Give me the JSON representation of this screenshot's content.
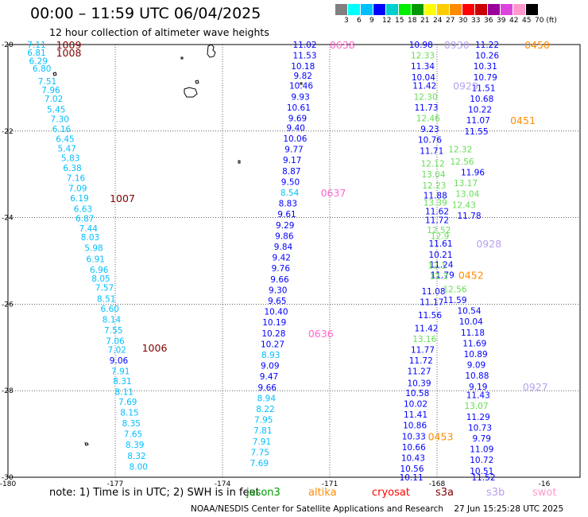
{
  "header": {
    "title": "00:00 – 11:59 UTC 06/04/2025",
    "subtitle": "12 hour collection of altimeter wave heights"
  },
  "legend": {
    "colors": [
      "#808080",
      "#00ffff",
      "#00bfff",
      "#0000ff",
      "#00cfcf",
      "#00ee00",
      "#009900",
      "#ffff00",
      "#ffcc00",
      "#ff8c00",
      "#ff0000",
      "#cc0000",
      "#990099",
      "#dd44dd",
      "#ff99cc",
      "#000000"
    ],
    "labels": [
      "3",
      "6",
      "9",
      "12",
      "15",
      "18",
      "21",
      "24",
      "27",
      "30",
      "33",
      "36",
      "39",
      "42",
      "45",
      "70 (ft)"
    ]
  },
  "axes": {
    "x_ticks": [
      "-180",
      "-177",
      "-174",
      "-171",
      "-168",
      "-16"
    ],
    "y_ticks": [
      "-20",
      "-22",
      "-24",
      "-26",
      "-28",
      "-30"
    ]
  },
  "chart_data": {
    "type": "scatter",
    "xlim": [
      -180,
      -164
    ],
    "ylim": [
      -30,
      -20
    ],
    "grid": true,
    "series": [
      {
        "color": "#00bfff",
        "points": [
          [
            -179.2,
            -20.0,
            "7.11"
          ],
          [
            -179.2,
            -20.18,
            "6.81"
          ],
          [
            -179.15,
            -20.38,
            "6.29"
          ],
          [
            -179.05,
            -20.55,
            "6.80"
          ],
          [
            -178.9,
            -20.85,
            "7.51"
          ],
          [
            -178.8,
            -21.05,
            "7.96"
          ],
          [
            -178.72,
            -21.25,
            "7.02"
          ],
          [
            -178.65,
            -21.5,
            "5.45"
          ],
          [
            -178.55,
            -21.72,
            "7.30"
          ],
          [
            -178.5,
            -21.95,
            "6.16"
          ],
          [
            -178.4,
            -22.18,
            "6.45"
          ],
          [
            -178.35,
            -22.4,
            "5.47"
          ],
          [
            -178.25,
            -22.62,
            "5.83"
          ],
          [
            -178.2,
            -22.85,
            "6.38"
          ],
          [
            -178.1,
            -23.08,
            "7.16"
          ],
          [
            -178.05,
            -23.32,
            "7.09"
          ],
          [
            -178.0,
            -23.55,
            "6.19"
          ],
          [
            -177.9,
            -23.8,
            "6.63"
          ],
          [
            -177.85,
            -24.02,
            "6.87"
          ],
          [
            -177.75,
            -24.25,
            "7.44"
          ],
          [
            -177.7,
            -24.45,
            "8.03"
          ],
          [
            -177.6,
            -24.7,
            "5.98"
          ],
          [
            -177.55,
            -24.95,
            "6.91"
          ],
          [
            -177.45,
            -25.2,
            "6.96"
          ],
          [
            -177.4,
            -25.4,
            "8.05"
          ],
          [
            -177.3,
            -25.62,
            "7.57"
          ],
          [
            -177.25,
            -25.87,
            "8.51"
          ],
          [
            -177.15,
            -26.1,
            "6.60"
          ],
          [
            -177.1,
            -26.35,
            "8.14"
          ],
          [
            -177.05,
            -26.6,
            "7.55"
          ],
          [
            -177.0,
            -26.85,
            "7.06"
          ],
          [
            -176.95,
            -27.05,
            "7.02"
          ]
        ]
      },
      {
        "color": "#0000ff",
        "points": [
          [
            -176.9,
            -27.3,
            "9.06"
          ]
        ]
      },
      {
        "color": "#00bfff",
        "points": [
          [
            -176.85,
            -27.55,
            "7.91"
          ],
          [
            -176.8,
            -27.78,
            "8.31"
          ],
          [
            -176.75,
            -28.02,
            "8.11"
          ],
          [
            -176.65,
            -28.25,
            "7.69"
          ],
          [
            -176.6,
            -28.5,
            "8.15"
          ],
          [
            -176.55,
            -28.75,
            "8.35"
          ],
          [
            -176.5,
            -29.0,
            "7.65"
          ],
          [
            -176.45,
            -29.25,
            "8.39"
          ],
          [
            -176.4,
            -29.5,
            "8.32"
          ],
          [
            -176.35,
            -29.75,
            "8.00"
          ]
        ]
      },
      {
        "color": "#0000ff",
        "points": [
          [
            -171.7,
            -20.0,
            "11.02"
          ],
          [
            -171.7,
            -20.25,
            "11.53"
          ],
          [
            -171.75,
            -20.5,
            "10.18"
          ],
          [
            -171.75,
            -20.72,
            "9.82"
          ],
          [
            -171.8,
            -20.95,
            "10.46"
          ],
          [
            -171.82,
            -21.2,
            "9.93"
          ],
          [
            -171.87,
            -21.45,
            "10.61"
          ],
          [
            -171.9,
            -21.7,
            "9.69"
          ],
          [
            -171.95,
            -21.92,
            "9.40"
          ],
          [
            -171.97,
            -22.17,
            "10.06"
          ],
          [
            -172.0,
            -22.42,
            "9.77"
          ],
          [
            -172.05,
            -22.67,
            "9.17"
          ],
          [
            -172.07,
            -22.92,
            "8.87"
          ],
          [
            -172.1,
            -23.17,
            "9.50"
          ]
        ]
      },
      {
        "color": "#00bfff",
        "points": [
          [
            -172.12,
            -23.42,
            "8.54"
          ]
        ]
      },
      {
        "color": "#0000ff",
        "points": [
          [
            -172.17,
            -23.67,
            "8.83"
          ],
          [
            -172.2,
            -23.92,
            "9.61"
          ],
          [
            -172.25,
            -24.17,
            "9.29"
          ],
          [
            -172.27,
            -24.42,
            "9.86"
          ],
          [
            -172.3,
            -24.67,
            "9.84"
          ],
          [
            -172.35,
            -24.92,
            "9.42"
          ],
          [
            -172.37,
            -25.17,
            "9.76"
          ],
          [
            -172.4,
            -25.42,
            "9.66"
          ],
          [
            -172.45,
            -25.67,
            "9.30"
          ],
          [
            -172.47,
            -25.92,
            "9.65"
          ],
          [
            -172.5,
            -26.17,
            "10.40"
          ],
          [
            -172.55,
            -26.42,
            "10.19"
          ],
          [
            -172.57,
            -26.67,
            "10.28"
          ],
          [
            -172.6,
            -26.92,
            "10.27"
          ]
        ]
      },
      {
        "color": "#00bfff",
        "points": [
          [
            -172.65,
            -27.17,
            "8.93"
          ]
        ]
      },
      {
        "color": "#0000ff",
        "points": [
          [
            -172.67,
            -27.42,
            "9.09"
          ],
          [
            -172.7,
            -27.67,
            "9.47"
          ],
          [
            -172.75,
            -27.92,
            "9.66"
          ]
        ]
      },
      {
        "color": "#00bfff",
        "points": [
          [
            -172.77,
            -28.17,
            "8.94"
          ],
          [
            -172.8,
            -28.42,
            "8.22"
          ],
          [
            -172.85,
            -28.67,
            "7.95"
          ],
          [
            -172.87,
            -28.92,
            "7.81"
          ],
          [
            -172.9,
            -29.17,
            "7.91"
          ],
          [
            -172.95,
            -29.42,
            "7.75"
          ],
          [
            -172.97,
            -29.67,
            "7.69"
          ]
        ]
      },
      {
        "color": "#0000ff",
        "points": [
          [
            -168.45,
            -20.0,
            "10.98"
          ],
          [
            -168.4,
            -20.5,
            "11.34"
          ],
          [
            -168.38,
            -20.75,
            "10.04"
          ],
          [
            -168.35,
            -20.95,
            "11.42"
          ],
          [
            -168.3,
            -21.45,
            "11.73"
          ],
          [
            -168.2,
            -21.95,
            "9.23"
          ],
          [
            -168.2,
            -22.2,
            "10.76"
          ],
          [
            -168.15,
            -22.45,
            "11.71"
          ],
          [
            -168.05,
            -23.48,
            "11.88"
          ],
          [
            -168.0,
            -23.85,
            "11.62"
          ],
          [
            -168.0,
            -24.05,
            "11.72"
          ],
          [
            -167.9,
            -24.6,
            "11.61"
          ],
          [
            -167.9,
            -24.85,
            "10.21"
          ],
          [
            -167.88,
            -25.08,
            "11.24"
          ],
          [
            -167.85,
            -25.32,
            "11.79"
          ],
          [
            -168.1,
            -25.7,
            "11.08"
          ],
          [
            -168.15,
            -25.95,
            "11.17"
          ],
          [
            -168.2,
            -26.25,
            "11.56"
          ],
          [
            -168.3,
            -26.55,
            "11.42"
          ],
          [
            -168.4,
            -27.05,
            "11.77"
          ],
          [
            -168.45,
            -27.3,
            "11.72"
          ],
          [
            -168.5,
            -27.55,
            "11.27"
          ],
          [
            -168.5,
            -27.82,
            "10.39"
          ],
          [
            -168.55,
            -28.05,
            "10.58"
          ],
          [
            -168.6,
            -28.3,
            "10.02"
          ],
          [
            -168.6,
            -28.55,
            "11.41"
          ],
          [
            -168.62,
            -28.8,
            "10.86"
          ],
          [
            -168.65,
            -29.05,
            "10.33"
          ],
          [
            -168.65,
            -29.3,
            "10.66"
          ],
          [
            -168.67,
            -29.55,
            "10.43"
          ],
          [
            -168.7,
            -29.8,
            "10.56"
          ],
          [
            -168.72,
            -30.0,
            "10.11"
          ]
        ]
      },
      {
        "color": "#66dd55",
        "points": [
          [
            -168.4,
            -20.25,
            "12.33"
          ],
          [
            -168.32,
            -21.2,
            "12.30"
          ],
          [
            -168.25,
            -21.7,
            "12.46"
          ],
          [
            -168.12,
            -22.75,
            "12.12"
          ],
          [
            -168.1,
            -23.0,
            "13.04"
          ],
          [
            -168.08,
            -23.25,
            "12.23"
          ],
          [
            -168.05,
            -23.65,
            "13.39"
          ],
          [
            -167.95,
            -24.28,
            "12.52"
          ],
          [
            -167.92,
            -24.42,
            "12.9"
          ],
          [
            -168.0,
            -25.1,
            "12.1"
          ],
          [
            -167.95,
            -25.35,
            "12.3"
          ],
          [
            -167.5,
            -25.65,
            "12.56"
          ],
          [
            -168.35,
            -26.8,
            "13.16"
          ],
          [
            -166.9,
            -28.35,
            "13.07"
          ],
          [
            -167.35,
            -22.42,
            "12.32"
          ],
          [
            -167.3,
            -22.7,
            "12.56"
          ],
          [
            -167.2,
            -23.2,
            "13.17"
          ],
          [
            -167.15,
            -23.45,
            "13.04"
          ],
          [
            -167.25,
            -23.7,
            "12.43"
          ]
        ]
      },
      {
        "color": "#0000ff",
        "points": [
          [
            -166.6,
            -20.0,
            "11.22"
          ],
          [
            -166.6,
            -20.25,
            "10.26"
          ],
          [
            -166.65,
            -20.5,
            "10.31"
          ],
          [
            -166.65,
            -20.75,
            "10.79"
          ],
          [
            -166.7,
            -21.0,
            "11.51"
          ],
          [
            -166.75,
            -21.25,
            "10.68"
          ],
          [
            -166.8,
            -21.5,
            "10.22"
          ],
          [
            -166.85,
            -21.75,
            "11.07"
          ],
          [
            -166.9,
            -22.0,
            "11.55"
          ],
          [
            -167.0,
            -22.95,
            "11.96"
          ],
          [
            -167.1,
            -23.95,
            "11.78"
          ],
          [
            -167.5,
            -25.9,
            "11.59"
          ],
          [
            -167.1,
            -26.15,
            "10.54"
          ],
          [
            -167.05,
            -26.4,
            "10.04"
          ],
          [
            -167.0,
            -26.65,
            "11.18"
          ],
          [
            -166.95,
            -26.9,
            "11.69"
          ],
          [
            -166.92,
            -27.15,
            "10.89"
          ],
          [
            -166.9,
            -27.4,
            "9.09"
          ],
          [
            -166.88,
            -27.65,
            "10.88"
          ],
          [
            -166.85,
            -27.9,
            "9.19"
          ],
          [
            -166.85,
            -28.1,
            "11.43"
          ],
          [
            -166.85,
            -28.6,
            "11.29"
          ],
          [
            -166.8,
            -28.85,
            "10.73"
          ],
          [
            -166.75,
            -29.1,
            "9.79"
          ],
          [
            -166.75,
            -29.35,
            "11.09"
          ],
          [
            -166.75,
            -29.6,
            "10.72"
          ],
          [
            -166.75,
            -29.85,
            "10.51"
          ],
          [
            -166.7,
            -30.0,
            "11.52"
          ]
        ]
      }
    ],
    "annotations": [
      {
        "x": -178.3,
        "y": -20.0,
        "text": "1009",
        "color": "#800000"
      },
      {
        "x": -178.3,
        "y": -20.18,
        "text": "1008",
        "color": "#800000"
      },
      {
        "x": -176.8,
        "y": -23.55,
        "text": "1007",
        "color": "#800000"
      },
      {
        "x": -175.9,
        "y": -27.0,
        "text": "1006",
        "color": "#800000"
      },
      {
        "x": -170.65,
        "y": -20.0,
        "text": "0638",
        "color": "#ff66cc"
      },
      {
        "x": -170.9,
        "y": -23.42,
        "text": "0637",
        "color": "#ff66cc"
      },
      {
        "x": -171.25,
        "y": -26.67,
        "text": "0636",
        "color": "#ff66cc"
      },
      {
        "x": -167.45,
        "y": -20.0,
        "text": "0930",
        "color": "#b8a0f0"
      },
      {
        "x": -167.2,
        "y": -20.95,
        "text": "0929",
        "color": "#b8a0f0"
      },
      {
        "x": -166.55,
        "y": -24.6,
        "text": "0928",
        "color": "#b8a0f0"
      },
      {
        "x": -165.25,
        "y": -27.9,
        "text": "0927",
        "color": "#b8a0f0"
      },
      {
        "x": -165.2,
        "y": -20.0,
        "text": "0450",
        "color": "#ff8c00"
      },
      {
        "x": -165.6,
        "y": -21.75,
        "text": "0451",
        "color": "#ff8c00"
      },
      {
        "x": -167.05,
        "y": -25.32,
        "text": "0452",
        "color": "#ff8c00"
      },
      {
        "x": -167.9,
        "y": -29.05,
        "text": "0453",
        "color": "#ff8c00"
      }
    ]
  },
  "footer": {
    "note": "note: 1) Time is in UTC; 2) SWH is in feet",
    "satellites": [
      {
        "name": "jason3",
        "color": "#009900"
      },
      {
        "name": "altika",
        "color": "#ff8c00"
      },
      {
        "name": "cryosat",
        "color": "#ff0000"
      },
      {
        "name": "s3a",
        "color": "#800000"
      },
      {
        "name": "s3b",
        "color": "#b8a0f0"
      },
      {
        "name": "swot",
        "color": "#ff99cc"
      }
    ],
    "credit": "NOAA/NESDIS Center for Satellite Applications and Research",
    "timestamp": "27 Jun 15:25:28 UTC 2025"
  }
}
